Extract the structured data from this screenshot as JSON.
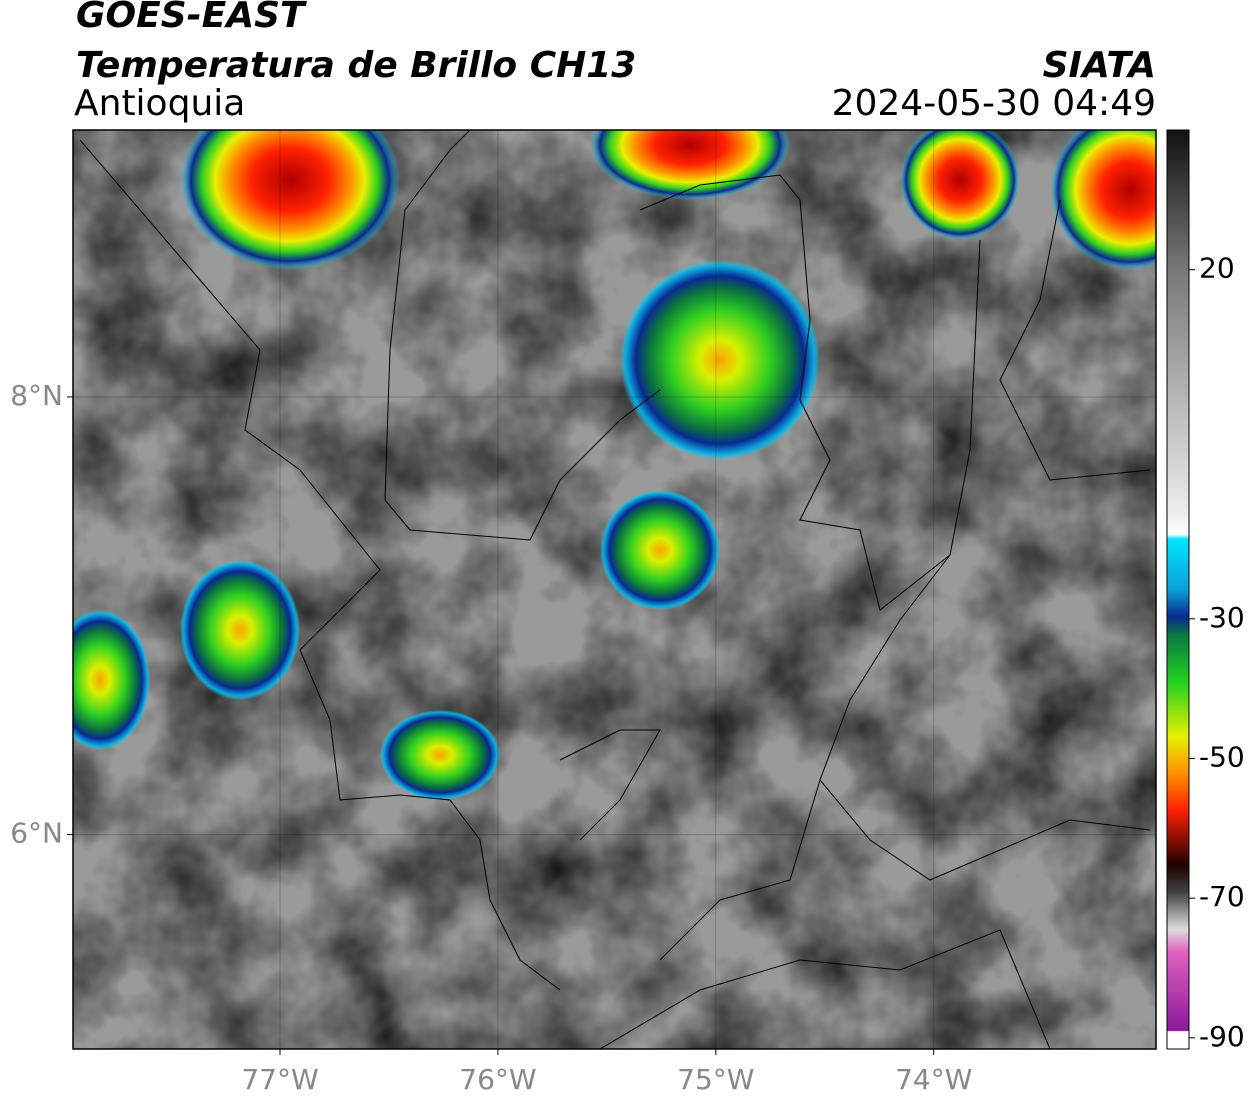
{
  "header": {
    "satellite": "GOES-EAST",
    "product": "Temperatura de Brillo CH13",
    "region": "Antioquia",
    "source": "SIATA",
    "datetime": "2024-05-30 04:49"
  },
  "map": {
    "lon_range": [
      -77.95,
      -72.98
    ],
    "lat_range": [
      5.02,
      9.22
    ],
    "lon_ticks": [
      {
        "value": -77,
        "label": "77°W"
      },
      {
        "value": -76,
        "label": "76°W"
      },
      {
        "value": -75,
        "label": "75°W"
      },
      {
        "value": -74,
        "label": "74°W"
      }
    ],
    "lat_ticks": [
      {
        "value": 8,
        "label": "8°N"
      },
      {
        "value": 6,
        "label": "6°N"
      }
    ],
    "grid": true
  },
  "colorbar": {
    "range": [
      -91.6,
      40
    ],
    "ticks": [
      20,
      -30,
      -50,
      -70,
      -90
    ]
  }
}
